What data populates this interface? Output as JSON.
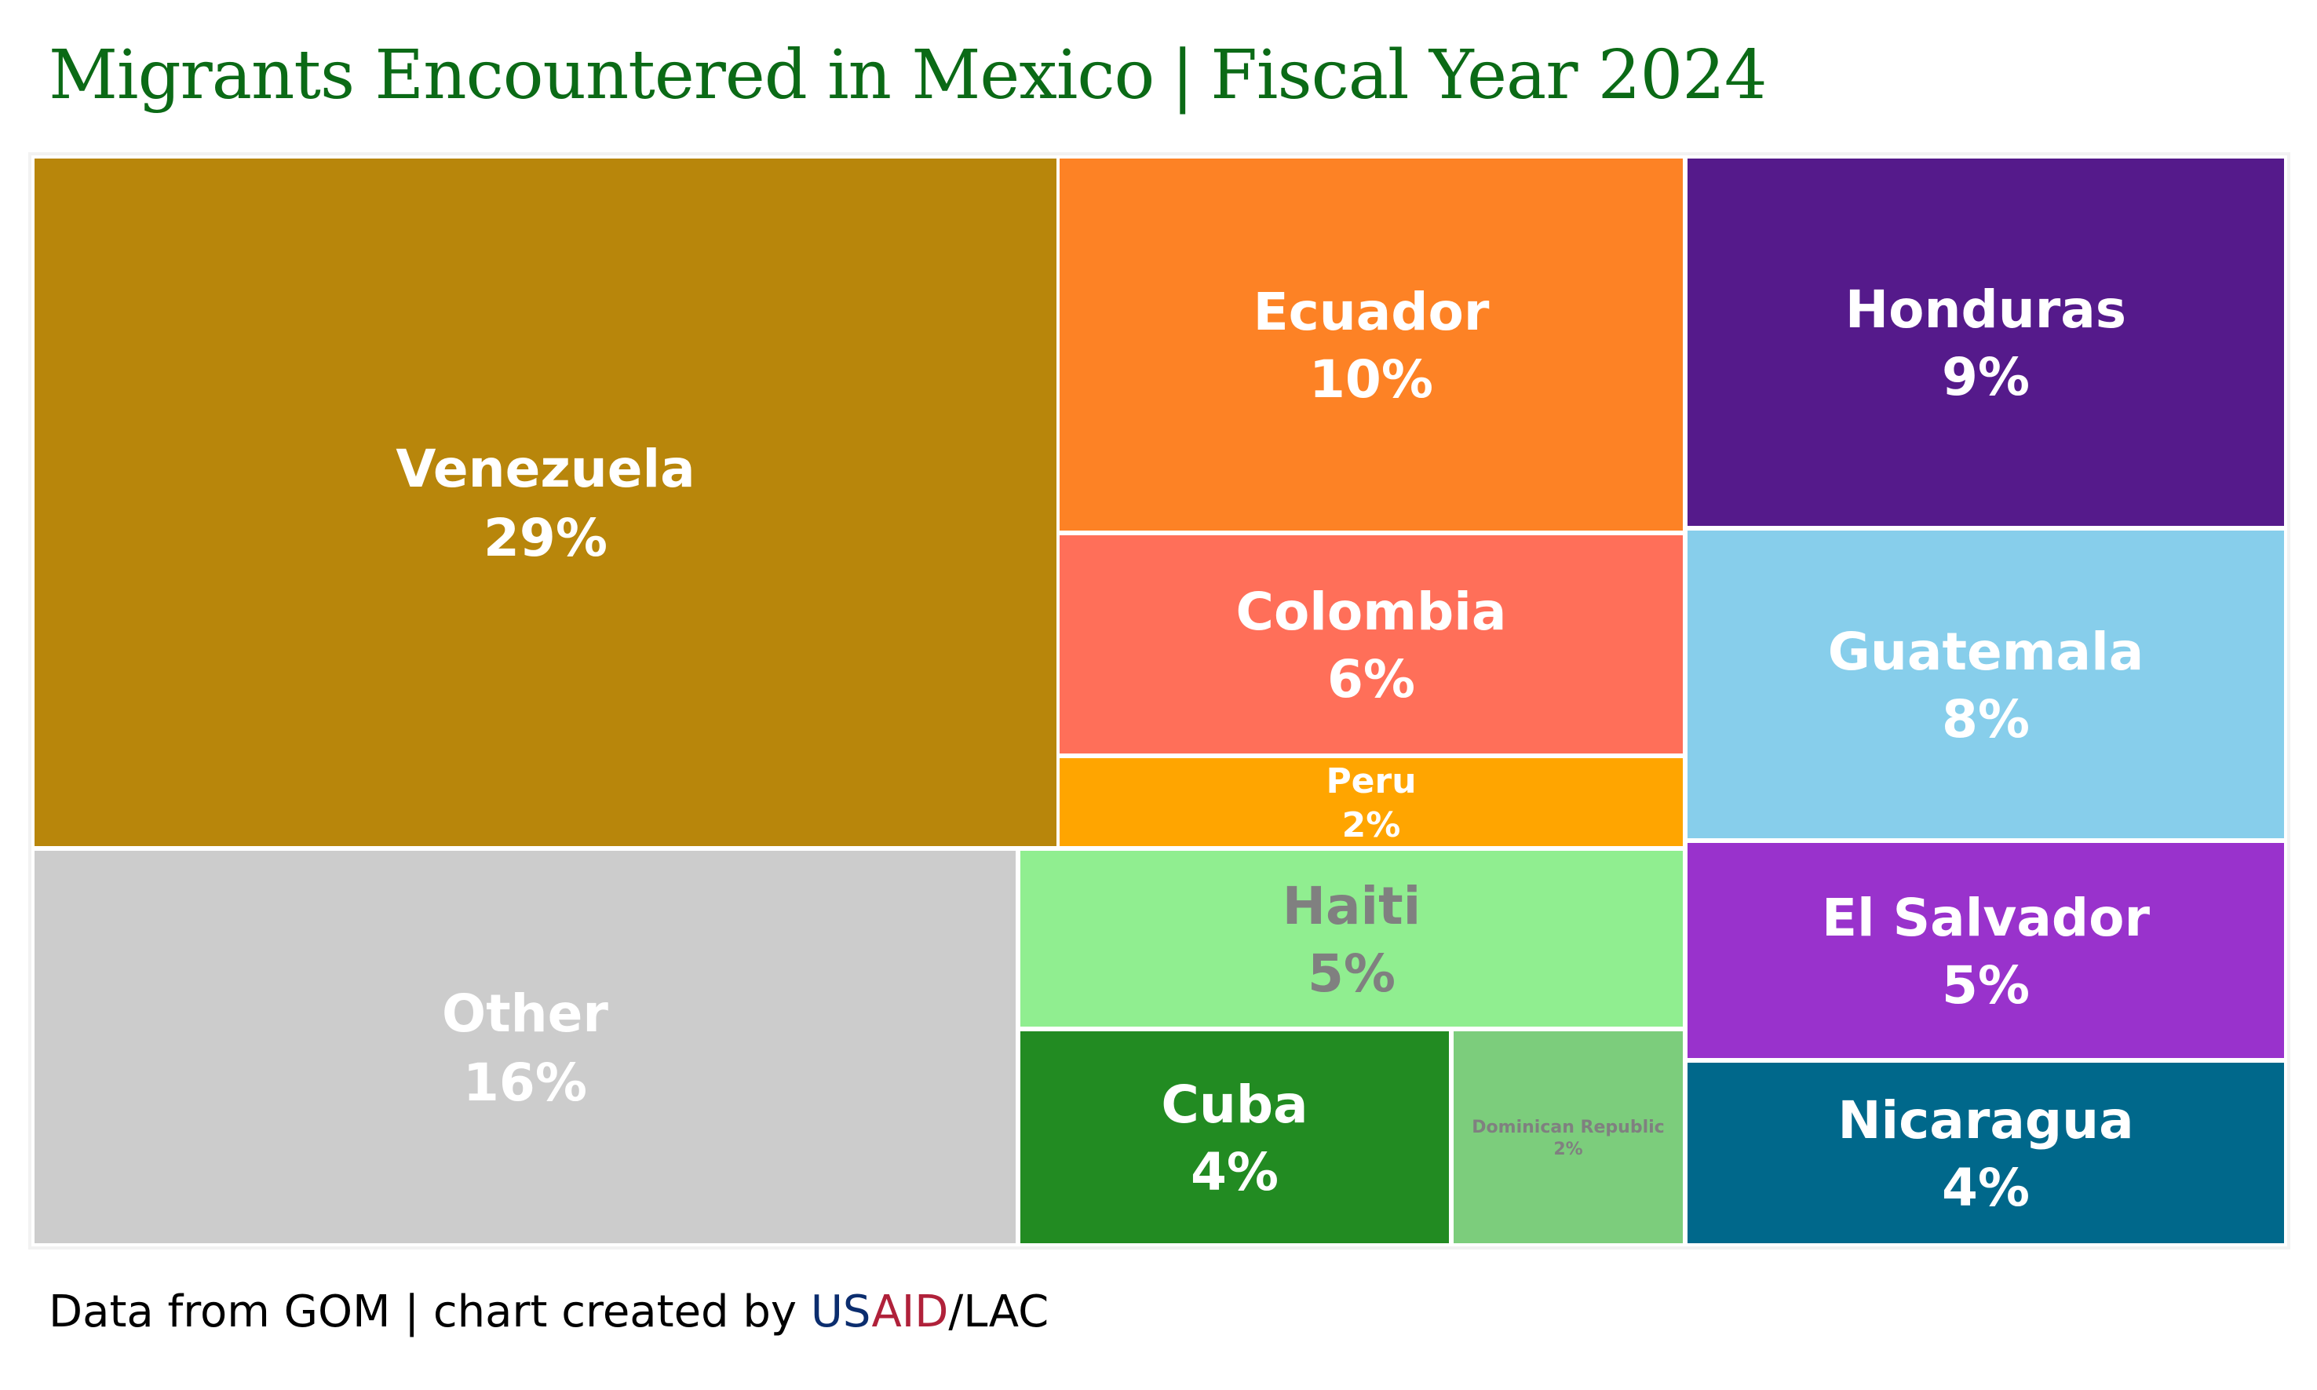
{
  "header": {
    "title_left": "Migrants Encountered in Mexico",
    "title_sep": "|",
    "title_right": "Fiscal Year 2024"
  },
  "footer": {
    "prefix": "Data from GOM | chart created by ",
    "us": "US",
    "aid": "AID",
    "suffix": "/LAC"
  },
  "chart_data": {
    "type": "treemap",
    "title": "Migrants Encountered in Mexico | Fiscal Year 2024",
    "unit": "%",
    "items": [
      {
        "name": "Venezuela",
        "value": 29,
        "label": "29%",
        "color": "#b8860b",
        "text_color": "#ffffff"
      },
      {
        "name": "Other",
        "value": 16,
        "label": "16%",
        "color": "#cccccc",
        "text_color": "#ffffff"
      },
      {
        "name": "Ecuador",
        "value": 10,
        "label": "10%",
        "color": "#fd8225",
        "text_color": "#ffffff"
      },
      {
        "name": "Colombia",
        "value": 6,
        "label": "6%",
        "color": "#ff6f59",
        "text_color": "#ffffff"
      },
      {
        "name": "Peru",
        "value": 2,
        "label": "2%",
        "color": "#ffa500",
        "text_color": "#ffffff"
      },
      {
        "name": "Haiti",
        "value": 5,
        "label": "5%",
        "color": "#90ee90",
        "text_color": "#808080"
      },
      {
        "name": "Cuba",
        "value": 4,
        "label": "4%",
        "color": "#228b22",
        "text_color": "#ffffff"
      },
      {
        "name": "Dominican Republic",
        "value": 2,
        "label": "2%",
        "color": "#7ccd7c",
        "text_color": "#808080"
      },
      {
        "name": "Honduras",
        "value": 9,
        "label": "9%",
        "color": "#551a8b",
        "text_color": "#ffffff"
      },
      {
        "name": "Guatemala",
        "value": 8,
        "label": "8%",
        "color": "#87ceeb",
        "text_color": "#ffffff"
      },
      {
        "name": "El Salvador",
        "value": 5,
        "label": "5%",
        "color": "#9932cc",
        "text_color": "#ffffff"
      },
      {
        "name": "Nicaragua",
        "value": 4,
        "label": "4%",
        "color": "#00688b",
        "text_color": "#ffffff"
      }
    ]
  }
}
